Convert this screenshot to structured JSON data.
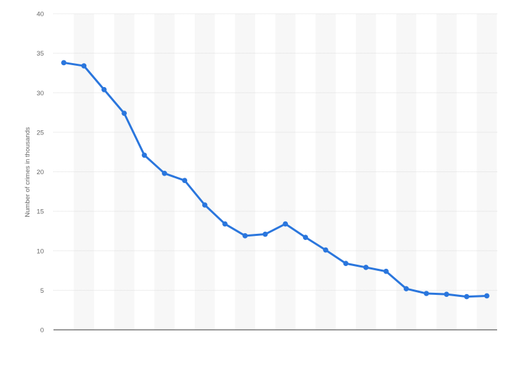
{
  "chart_data": {
    "type": "line",
    "title": "",
    "xlabel": "",
    "ylabel": "Number of crimes in thousands",
    "ylim": [
      0,
      40
    ],
    "yticks": [
      0,
      5,
      10,
      15,
      20,
      25,
      30,
      35,
      40
    ],
    "grid": true,
    "alternating_column_bands": true,
    "series": [
      {
        "color": "#2a76dd",
        "values": [
          33.8,
          33.4,
          30.4,
          27.4,
          22.1,
          19.8,
          18.9,
          15.8,
          13.4,
          11.9,
          12.1,
          13.4,
          11.7,
          10.1,
          8.4,
          7.9,
          7.4,
          5.2,
          4.6,
          4.5,
          4.2,
          4.3
        ]
      }
    ]
  }
}
